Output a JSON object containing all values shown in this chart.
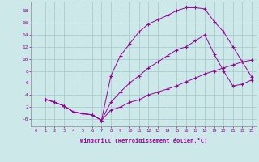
{
  "xlabel": "Windchill (Refroidissement éolien,°C)",
  "line_color": "#990099",
  "bg_color": "#cce8e8",
  "grid_color": "#aacccc",
  "xlim": [
    -0.5,
    23.5
  ],
  "ylim": [
    -1.2,
    19.5
  ],
  "xticks": [
    0,
    1,
    2,
    3,
    4,
    5,
    6,
    7,
    8,
    9,
    10,
    11,
    12,
    13,
    14,
    15,
    16,
    17,
    18,
    19,
    20,
    21,
    22,
    23
  ],
  "ytick_vals": [
    0,
    2,
    4,
    6,
    8,
    10,
    12,
    14,
    16,
    18
  ],
  "ytick_labels": [
    "-0",
    "2",
    "4",
    "6",
    "8",
    "10",
    "12",
    "14",
    "16",
    "18"
  ],
  "curve1_x": [
    1,
    2,
    3,
    4,
    5,
    6,
    7,
    8,
    9,
    10,
    11,
    12,
    13,
    14,
    15,
    16,
    17,
    18,
    19,
    20,
    21,
    22,
    23
  ],
  "curve1_y": [
    3.3,
    2.8,
    2.2,
    1.2,
    0.9,
    0.7,
    -0.2,
    7.2,
    10.5,
    12.5,
    14.5,
    15.8,
    16.5,
    17.2,
    18.0,
    18.5,
    18.5,
    18.3,
    16.2,
    14.5,
    12.0,
    9.5,
    7.0
  ],
  "curve2_x": [
    1,
    2,
    3,
    4,
    5,
    6,
    7,
    8,
    9,
    10,
    11,
    12,
    13,
    14,
    15,
    16,
    17,
    18,
    19,
    20,
    21,
    22,
    23
  ],
  "curve2_y": [
    3.3,
    2.8,
    2.2,
    1.2,
    0.9,
    0.7,
    -0.2,
    2.8,
    4.5,
    6.0,
    7.2,
    8.5,
    9.5,
    10.5,
    11.5,
    12.0,
    13.0,
    14.0,
    10.8,
    8.0,
    5.5,
    5.8,
    6.5
  ],
  "curve3_x": [
    1,
    2,
    3,
    4,
    5,
    6,
    7,
    8,
    9,
    10,
    11,
    12,
    13,
    14,
    15,
    16,
    17,
    18,
    19,
    20,
    21,
    22,
    23
  ],
  "curve3_y": [
    3.3,
    2.8,
    2.2,
    1.2,
    0.9,
    0.7,
    -0.2,
    1.5,
    2.0,
    2.8,
    3.2,
    4.0,
    4.5,
    5.0,
    5.5,
    6.2,
    6.8,
    7.5,
    8.0,
    8.5,
    9.0,
    9.5,
    9.8
  ]
}
